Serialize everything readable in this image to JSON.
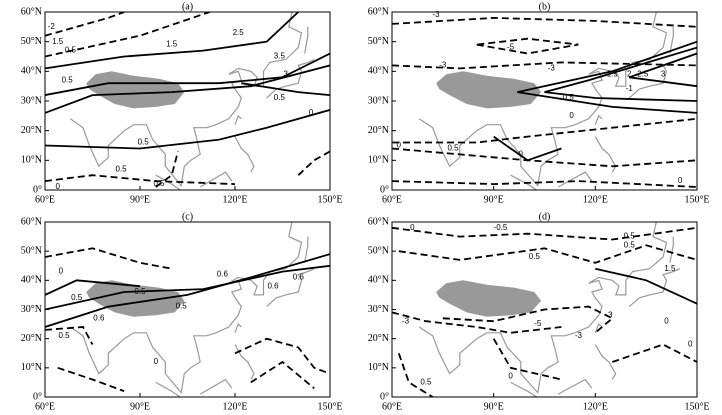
{
  "axes": {
    "yticks": [
      "60°N",
      "50°N",
      "40°N",
      "30°N",
      "20°N",
      "10°N",
      "0°"
    ],
    "xticks": [
      "60°E",
      "90°E",
      "120°E",
      "150°E"
    ]
  },
  "panels": [
    {
      "label": "(a)",
      "contour_labels": [
        "-2",
        "1.5",
        "0.5",
        "0.5",
        "1.5",
        "2.5",
        "3.5",
        "3",
        "0.5",
        "0",
        "0.5",
        "0.5",
        "0.5",
        "0"
      ]
    },
    {
      "label": "(b)",
      "contour_labels": [
        "-3",
        "-5",
        "-3",
        "-3",
        "1.5",
        "2",
        "2.5",
        "3",
        "0.5",
        "-1",
        "0",
        "0",
        "0.5",
        "0",
        "0"
      ]
    },
    {
      "label": "(c)",
      "contour_labels": [
        "0",
        "0.5",
        "0.6",
        "0.6",
        "0.5",
        "0.6",
        "0.5",
        "0.6",
        "0.5",
        "0"
      ]
    },
    {
      "label": "(d)",
      "contour_labels": [
        "0",
        "-0.5",
        "0.5",
        "0.5",
        "0.5",
        "-5",
        "-3",
        "-3",
        "-3",
        "1.5",
        "0",
        "0.5",
        "0",
        "0"
      ]
    }
  ]
}
